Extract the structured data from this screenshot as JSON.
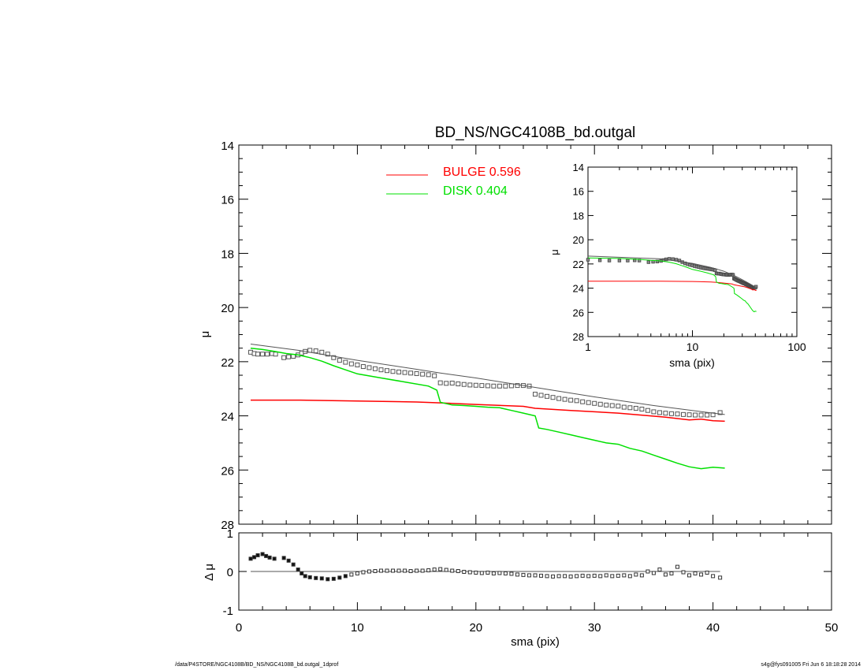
{
  "chart_data": [
    {
      "type": "scatter",
      "title": "BD_NS/NGC4108B_bd.outgal",
      "xlabel": "",
      "ylabel": "μ",
      "xlim": [
        0,
        50
      ],
      "ylim": [
        28,
        14
      ],
      "yticks": [
        "14",
        "16",
        "18",
        "20",
        "22",
        "24",
        "26",
        "28"
      ],
      "legend": [
        {
          "label": "BULGE  0.596",
          "color": "#ff0000"
        },
        {
          "label": "DISK  0.404",
          "color": "#00e000"
        }
      ],
      "legend_position": "top-center",
      "series": [
        {
          "kind": "points",
          "color": "#555555",
          "x": [
            1.0,
            1.3,
            1.6,
            2.0,
            2.4,
            2.8,
            3.1,
            3.8,
            4.2,
            4.6,
            5.0,
            5.3,
            5.6,
            6.0,
            6.5,
            7.0,
            7.5,
            8.0,
            8.5,
            9.0,
            9.5,
            10.0,
            10.5,
            11.0,
            11.5,
            12.0,
            12.5,
            13.0,
            13.5,
            14.0,
            14.5,
            15.0,
            15.5,
            16.0,
            16.5,
            17.0,
            17.5,
            18.0,
            18.5,
            19.0,
            19.5,
            20.0,
            20.5,
            21.0,
            21.5,
            22.0,
            22.5,
            23.0,
            23.5,
            24.0,
            24.5,
            25.0,
            25.5,
            26.0,
            26.5,
            27.0,
            27.5,
            28.0,
            28.5,
            29.0,
            29.5,
            30.0,
            30.5,
            31.0,
            31.5,
            32.0,
            32.5,
            33.0,
            33.5,
            34.0,
            34.5,
            35.0,
            35.5,
            36.0,
            36.5,
            37.0,
            37.5,
            38.0,
            38.5,
            39.0,
            39.5,
            40.0,
            40.6
          ],
          "y": [
            21.65,
            21.7,
            21.72,
            21.72,
            21.72,
            21.7,
            21.72,
            21.85,
            21.82,
            21.8,
            21.75,
            21.68,
            21.62,
            21.58,
            21.6,
            21.65,
            21.72,
            21.85,
            21.95,
            22.02,
            22.08,
            22.12,
            22.18,
            22.22,
            22.26,
            22.3,
            22.33,
            22.36,
            22.38,
            22.4,
            22.42,
            22.44,
            22.46,
            22.48,
            22.52,
            22.78,
            22.8,
            22.79,
            22.82,
            22.84,
            22.86,
            22.87,
            22.88,
            22.89,
            22.9,
            22.9,
            22.9,
            22.89,
            22.88,
            22.88,
            22.9,
            23.2,
            23.24,
            23.28,
            23.32,
            23.36,
            23.39,
            23.42,
            23.44,
            23.48,
            23.51,
            23.54,
            23.57,
            23.6,
            23.62,
            23.64,
            23.68,
            23.7,
            23.72,
            23.75,
            23.8,
            23.85,
            23.88,
            23.9,
            23.92,
            23.93,
            23.95,
            23.96,
            23.97,
            23.97,
            23.97,
            23.96,
            23.88
          ]
        },
        {
          "kind": "line",
          "name": "",
          "color": "#555555",
          "x": [
            1.0,
            5,
            10,
            15,
            17,
            20,
            25,
            30,
            35,
            40,
            41
          ],
          "y": [
            21.35,
            21.58,
            21.95,
            22.28,
            22.42,
            22.6,
            22.95,
            23.3,
            23.62,
            23.9,
            23.95
          ]
        },
        {
          "kind": "line",
          "name": "BULGE",
          "color": "#ff0000",
          "x": [
            1.0,
            5,
            10,
            15,
            17,
            20,
            24,
            25,
            28,
            32,
            36,
            38,
            39,
            40,
            41
          ],
          "y": [
            23.42,
            23.42,
            23.45,
            23.49,
            23.52,
            23.58,
            23.65,
            23.72,
            23.8,
            23.9,
            24.05,
            24.15,
            24.12,
            24.18,
            24.2
          ]
        },
        {
          "kind": "line",
          "name": "DISK",
          "color": "#00e000",
          "x": [
            1.0,
            2,
            3,
            4,
            5,
            6,
            7,
            8,
            9,
            10,
            12,
            14,
            16,
            16.7,
            17,
            18,
            19,
            20,
            21,
            22,
            23,
            24,
            25,
            25.3,
            26,
            27,
            28,
            29,
            30,
            31,
            32,
            33,
            34,
            35,
            36,
            37,
            38,
            39,
            40,
            41
          ],
          "y": [
            21.5,
            21.55,
            21.62,
            21.7,
            21.75,
            21.85,
            21.98,
            22.15,
            22.3,
            22.45,
            22.6,
            22.75,
            22.9,
            23.05,
            23.5,
            23.6,
            23.62,
            23.65,
            23.68,
            23.7,
            23.8,
            23.9,
            24.0,
            24.45,
            24.5,
            24.6,
            24.7,
            24.8,
            24.9,
            25.0,
            25.05,
            25.2,
            25.3,
            25.45,
            25.6,
            25.75,
            25.88,
            25.95,
            25.9,
            25.93
          ]
        }
      ]
    },
    {
      "type": "scatter",
      "title": "",
      "xlabel": "sma (pix)",
      "ylabel": "μ",
      "xscale": "log",
      "xlim": [
        1,
        100
      ],
      "ylim": [
        28,
        14
      ],
      "xticks": [
        "1",
        "10",
        "100"
      ],
      "yticks": [
        "14",
        "16",
        "18",
        "20",
        "22",
        "24",
        "26",
        "28"
      ],
      "note": "inset: same profile on log sma axis"
    },
    {
      "type": "scatter",
      "title": "",
      "xlabel": "sma (pix)",
      "ylabel": "Δ μ",
      "xlim": [
        0,
        50
      ],
      "ylim": [
        -1,
        1
      ],
      "xticks": [
        "0",
        "10",
        "20",
        "30",
        "40",
        "50"
      ],
      "yticks": [
        "1",
        "0",
        "-1"
      ],
      "residuals": {
        "color": "#333333",
        "x": [
          1.0,
          1.3,
          1.6,
          2.0,
          2.3,
          2.6,
          3.0,
          3.8,
          4.2,
          4.6,
          5.0,
          5.3,
          5.6,
          6.0,
          6.5,
          7.0,
          7.5,
          8.0,
          8.5,
          9.0,
          9.5,
          10.0,
          10.5,
          11.0,
          11.5,
          12.0,
          12.5,
          13.0,
          13.5,
          14.0,
          14.5,
          15.0,
          15.5,
          16.0,
          16.5,
          17.0,
          17.5,
          18.0,
          18.5,
          19.0,
          19.5,
          20.0,
          20.5,
          21.0,
          21.5,
          22.0,
          22.5,
          23.0,
          23.5,
          24.0,
          24.5,
          25.0,
          25.5,
          26.0,
          26.5,
          27.0,
          27.5,
          28.0,
          28.5,
          29.0,
          29.5,
          30.0,
          30.5,
          31.0,
          31.5,
          32.0,
          32.5,
          33.0,
          33.5,
          34.0,
          34.5,
          35.0,
          35.5,
          36.0,
          36.5,
          37.0,
          37.5,
          38.0,
          38.5,
          39.0,
          39.5,
          40.0,
          40.6
        ],
        "y": [
          0.33,
          0.37,
          0.42,
          0.45,
          0.4,
          0.36,
          0.33,
          0.35,
          0.28,
          0.18,
          0.05,
          -0.05,
          -0.12,
          -0.15,
          -0.17,
          -0.18,
          -0.2,
          -0.19,
          -0.16,
          -0.12,
          -0.08,
          -0.05,
          -0.02,
          0.0,
          0.01,
          0.02,
          0.02,
          0.02,
          0.02,
          0.02,
          0.01,
          0.02,
          0.02,
          0.03,
          0.05,
          0.06,
          0.04,
          0.02,
          0.01,
          -0.01,
          -0.02,
          -0.03,
          -0.04,
          -0.03,
          -0.05,
          -0.04,
          -0.05,
          -0.06,
          -0.08,
          -0.09,
          -0.1,
          -0.1,
          -0.11,
          -0.12,
          -0.13,
          -0.12,
          -0.12,
          -0.13,
          -0.12,
          -0.11,
          -0.12,
          -0.11,
          -0.12,
          -0.1,
          -0.12,
          -0.11,
          -0.1,
          -0.12,
          -0.08,
          -0.1,
          0.0,
          -0.04,
          0.05,
          -0.08,
          -0.05,
          0.12,
          -0.02,
          -0.1,
          -0.05,
          -0.08,
          -0.03,
          -0.12,
          -0.16
        ]
      }
    }
  ],
  "footer": {
    "left": "/data/P4STORE/NGC4108B/BD_NS/NGC4108B_bd.outgal_1dprof",
    "right": "s4g@fys091005  Fri Jun  6 18:18:28 2014"
  }
}
